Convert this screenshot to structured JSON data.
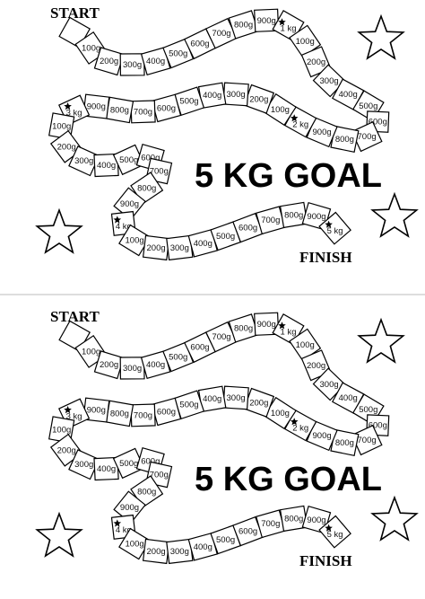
{
  "colors": {
    "ink": "#000000",
    "paper": "#ffffff"
  },
  "boards": [
    {
      "title": "5 KG GOAL",
      "start_label": "START",
      "finish_label": "FINISH",
      "cells": [
        "",
        "100g",
        "200g",
        "300g",
        "400g",
        "500g",
        "600g",
        "700g",
        "800g",
        "900g",
        "1 kg",
        "100g",
        "200g",
        "300g",
        "400g",
        "500g",
        "600g",
        "700g",
        "800g",
        "900g",
        "2 kg",
        "100g",
        "200g",
        "300g",
        "400g",
        "500g",
        "600g",
        "700g",
        "800g",
        "900g",
        "3 kg",
        "100g",
        "200g",
        "300g",
        "400g",
        "500g",
        "600g",
        "700g",
        "800g",
        "900g",
        "4 kg",
        "100g",
        "200g",
        "300g",
        "400g",
        "500g",
        "600g",
        "700g",
        "800g",
        "900g",
        "5 kg"
      ],
      "star_cells": [
        "1 kg",
        "2 kg",
        "3 kg",
        "4 kg",
        "5 kg"
      ],
      "decor_icons": [
        "star-icon",
        "star-icon",
        "star-icon"
      ]
    },
    {
      "title": "5 KG GOAL",
      "start_label": "START",
      "finish_label": "FINISH",
      "cells": [
        "",
        "100g",
        "200g",
        "300g",
        "400g",
        "500g",
        "600g",
        "700g",
        "800g",
        "900g",
        "1 kg",
        "100g",
        "200g",
        "300g",
        "400g",
        "500g",
        "600g",
        "700g",
        "800g",
        "900g",
        "2 kg",
        "100g",
        "200g",
        "300g",
        "400g",
        "500g",
        "600g",
        "700g",
        "800g",
        "900g",
        "3 kg",
        "100g",
        "200g",
        "300g",
        "400g",
        "500g",
        "600g",
        "700g",
        "800g",
        "900g",
        "4 kg",
        "100g",
        "200g",
        "300g",
        "400g",
        "500g",
        "600g",
        "700g",
        "800g",
        "900g",
        "5 kg"
      ],
      "star_cells": [
        "1 kg",
        "2 kg",
        "3 kg",
        "4 kg",
        "5 kg"
      ],
      "decor_icons": [
        "star-icon",
        "star-icon",
        "star-icon"
      ]
    }
  ]
}
